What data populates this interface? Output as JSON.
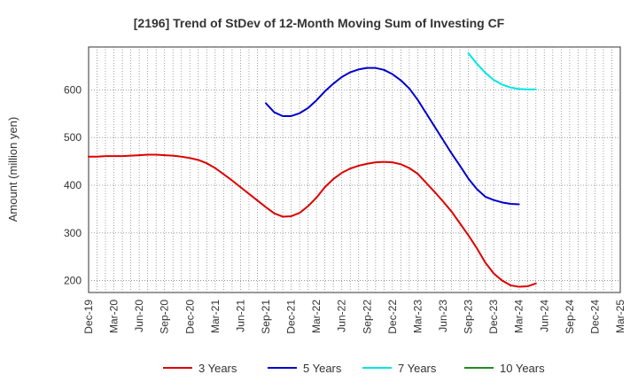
{
  "chart_data": {
    "type": "line",
    "title": "[2196]  Trend of StDev of 12-Month Moving Sum of Investing CF",
    "ylabel": "Amount (million yen)",
    "xlabel": "",
    "ylim": [
      175,
      690
    ],
    "yticks": [
      200,
      300,
      400,
      500,
      600
    ],
    "xlim": [
      "2019-12",
      "2025-03"
    ],
    "xticks": [
      "Dec-19",
      "Mar-20",
      "Jun-20",
      "Sep-20",
      "Dec-20",
      "Mar-21",
      "Jun-21",
      "Sep-21",
      "Dec-21",
      "Mar-22",
      "Jun-22",
      "Sep-22",
      "Dec-22",
      "Mar-23",
      "Jun-23",
      "Sep-23",
      "Dec-23",
      "Mar-24",
      "Jun-24",
      "Sep-24",
      "Dec-24",
      "Mar-25"
    ],
    "grid": true,
    "legend_position": "bottom",
    "series": [
      {
        "name": "3 Years",
        "color": "#dd0000",
        "points": [
          [
            "2019-12",
            460
          ],
          [
            "2020-01",
            460
          ],
          [
            "2020-02",
            461
          ],
          [
            "2020-03",
            461
          ],
          [
            "2020-04",
            461
          ],
          [
            "2020-05",
            462
          ],
          [
            "2020-06",
            463
          ],
          [
            "2020-07",
            464
          ],
          [
            "2020-08",
            464
          ],
          [
            "2020-09",
            463
          ],
          [
            "2020-10",
            462
          ],
          [
            "2020-11",
            460
          ],
          [
            "2020-12",
            457
          ],
          [
            "2021-01",
            453
          ],
          [
            "2021-02",
            446
          ],
          [
            "2021-03",
            436
          ],
          [
            "2021-04",
            423
          ],
          [
            "2021-05",
            410
          ],
          [
            "2021-06",
            396
          ],
          [
            "2021-07",
            382
          ],
          [
            "2021-08",
            368
          ],
          [
            "2021-09",
            354
          ],
          [
            "2021-10",
            341
          ],
          [
            "2021-11",
            334
          ],
          [
            "2021-12",
            335
          ],
          [
            "2022-01",
            342
          ],
          [
            "2022-02",
            356
          ],
          [
            "2022-03",
            374
          ],
          [
            "2022-04",
            396
          ],
          [
            "2022-05",
            413
          ],
          [
            "2022-06",
            426
          ],
          [
            "2022-07",
            435
          ],
          [
            "2022-08",
            441
          ],
          [
            "2022-09",
            445
          ],
          [
            "2022-10",
            448
          ],
          [
            "2022-11",
            449
          ],
          [
            "2022-12",
            448
          ],
          [
            "2023-01",
            444
          ],
          [
            "2023-02",
            436
          ],
          [
            "2023-03",
            424
          ],
          [
            "2023-04",
            405
          ],
          [
            "2023-05",
            386
          ],
          [
            "2023-06",
            366
          ],
          [
            "2023-07",
            345
          ],
          [
            "2023-08",
            320
          ],
          [
            "2023-09",
            295
          ],
          [
            "2023-10",
            268
          ],
          [
            "2023-11",
            238
          ],
          [
            "2023-12",
            215
          ],
          [
            "2024-01",
            200
          ],
          [
            "2024-02",
            190
          ],
          [
            "2024-03",
            187
          ],
          [
            "2024-04",
            188
          ],
          [
            "2024-05",
            194
          ]
        ]
      },
      {
        "name": "5 Years",
        "color": "#0000cc",
        "points": [
          [
            "2021-09",
            572
          ],
          [
            "2021-10",
            553
          ],
          [
            "2021-11",
            545
          ],
          [
            "2021-12",
            545
          ],
          [
            "2022-01",
            551
          ],
          [
            "2022-02",
            562
          ],
          [
            "2022-03",
            578
          ],
          [
            "2022-04",
            597
          ],
          [
            "2022-05",
            613
          ],
          [
            "2022-06",
            627
          ],
          [
            "2022-07",
            637
          ],
          [
            "2022-08",
            643
          ],
          [
            "2022-09",
            646
          ],
          [
            "2022-10",
            646
          ],
          [
            "2022-11",
            642
          ],
          [
            "2022-12",
            633
          ],
          [
            "2023-01",
            620
          ],
          [
            "2023-02",
            603
          ],
          [
            "2023-03",
            579
          ],
          [
            "2023-04",
            551
          ],
          [
            "2023-05",
            523
          ],
          [
            "2023-06",
            495
          ],
          [
            "2023-07",
            467
          ],
          [
            "2023-08",
            441
          ],
          [
            "2023-09",
            414
          ],
          [
            "2023-10",
            392
          ],
          [
            "2023-11",
            376
          ],
          [
            "2023-12",
            369
          ],
          [
            "2024-01",
            364
          ],
          [
            "2024-02",
            361
          ],
          [
            "2024-03",
            360
          ]
        ]
      },
      {
        "name": "7 Years",
        "color": "#00e5e5",
        "points": [
          [
            "2023-09",
            677
          ],
          [
            "2023-10",
            655
          ],
          [
            "2023-11",
            636
          ],
          [
            "2023-12",
            621
          ],
          [
            "2024-01",
            611
          ],
          [
            "2024-02",
            605
          ],
          [
            "2024-03",
            602
          ],
          [
            "2024-04",
            601
          ],
          [
            "2024-05",
            601
          ]
        ]
      },
      {
        "name": "10 Years",
        "color": "#228b22",
        "points": []
      }
    ]
  }
}
